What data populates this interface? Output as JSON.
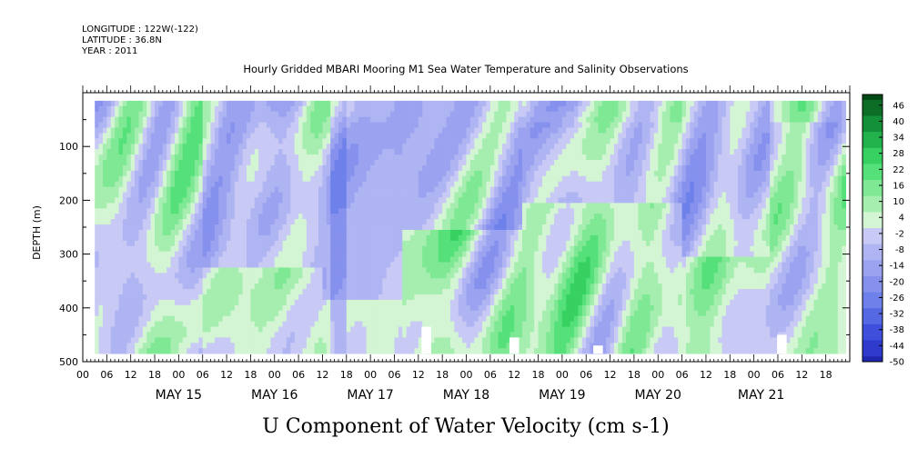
{
  "header": {
    "longitude": "LONGITUDE : 122W(-122)",
    "latitude": "LATITUDE : 36.8N",
    "year": "YEAR : 2011",
    "title": "Hourly Gridded MBARI Mooring M1 Sea Water Temperature and Salinity Observations"
  },
  "chart_data": {
    "type": "heatmap",
    "title": "Hourly Gridded MBARI Mooring M1 Sea Water Temperature and Salinity Observations",
    "xlabel": "U Component of Water Velocity (cm s-1)",
    "ylabel": "DEPTH (m)",
    "y_axis": {
      "range": [
        500,
        0
      ],
      "ticks": [
        100,
        200,
        300,
        400,
        500
      ],
      "inverted": true,
      "data_top_m": 15,
      "data_bottom_m": 485
    },
    "x_axis": {
      "start": "2011-05-14 00:00",
      "end": "2011-05-21 23:00",
      "data_start": "2011-05-14 03:00",
      "tick_hours": [
        "00",
        "06",
        "12",
        "18"
      ],
      "days": [
        "MAY 15",
        "MAY 16",
        "MAY 17",
        "MAY 18",
        "MAY 19",
        "MAY 20",
        "MAY 21"
      ]
    },
    "colorbar": {
      "min": -50,
      "max": 50,
      "step": 2,
      "labels": [
        "46",
        "40",
        "34",
        "28",
        "22",
        "16",
        "10",
        "4",
        "-2",
        "-8",
        "-14",
        "-20",
        "-26",
        "-32",
        "-38",
        "-44",
        "-50"
      ]
    },
    "gaps": [
      {
        "time": "2011-05-17 14:00",
        "depth_from": 435,
        "depth_to": 485
      },
      {
        "time": "2011-05-18 12:00",
        "depth_from": 455,
        "depth_to": 485
      },
      {
        "time": "2011-05-19 09:00",
        "depth_from": 470,
        "depth_to": 485
      },
      {
        "time": "2011-05-21 07:00",
        "depth_from": 450,
        "depth_to": 485
      }
    ],
    "colors": {
      "positive": [
        "#d3f5d3",
        "#a6edb0",
        "#7ee894",
        "#55e07a",
        "#36d160",
        "#22b24c",
        "#149038",
        "#0b6d26",
        "#044a14"
      ],
      "negative": [
        "#c9c9f5",
        "#afb4f2",
        "#9ba3f0",
        "#8591ed",
        "#6e80ea",
        "#5568e4",
        "#3f4fdb",
        "#2f3bcc",
        "#1f27b0",
        "#0e1280"
      ]
    }
  }
}
